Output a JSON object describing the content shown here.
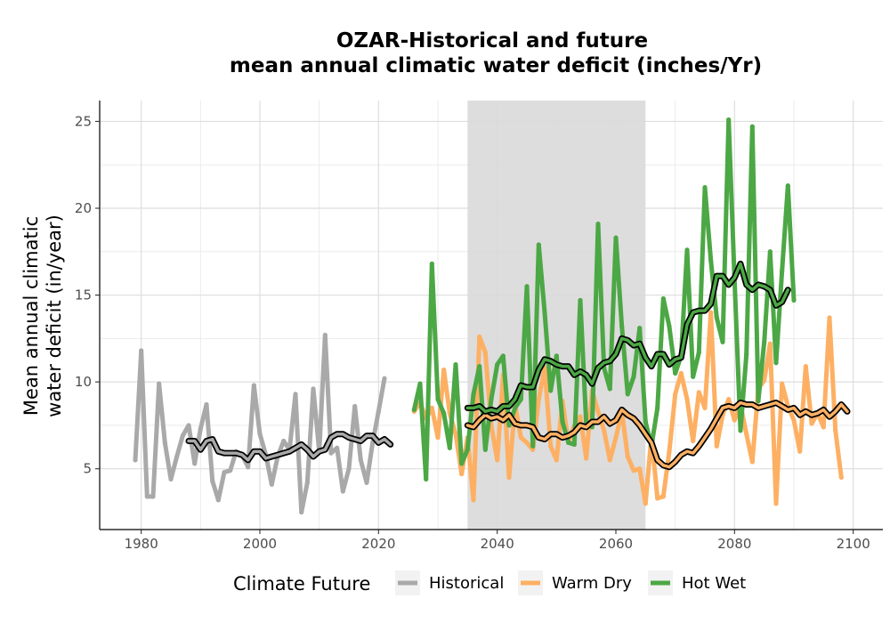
{
  "chart_data": {
    "type": "line",
    "title_line1": "OZAR-Historical and future",
    "title_line2": "mean annual climatic water deficit (inches/Yr)",
    "xlabel": "",
    "ylabel_line1": "Mean annual climatic",
    "ylabel_line2": "water deficit (in/year)",
    "xlim": [
      1973,
      2105
    ],
    "ylim": [
      1.5,
      26.2
    ],
    "x_ticks": [
      1980,
      2000,
      2020,
      2040,
      2060,
      2080,
      2100
    ],
    "y_ticks": [
      5,
      10,
      15,
      20,
      25
    ],
    "grid": true,
    "shaded_period": [
      2035,
      2065
    ],
    "legend": {
      "title": "Climate Future",
      "position": "bottom",
      "entries": [
        "Historical",
        "Warm Dry",
        "Hot Wet"
      ]
    },
    "series": [
      {
        "name": "Historical",
        "color": "#a9a9a9",
        "x": [
          1979,
          1980,
          1981,
          1982,
          1983,
          1984,
          1985,
          1986,
          1987,
          1988,
          1989,
          1990,
          1991,
          1992,
          1993,
          1994,
          1995,
          1996,
          1997,
          1998,
          1999,
          2000,
          2001,
          2002,
          2003,
          2004,
          2005,
          2006,
          2007,
          2008,
          2009,
          2010,
          2011,
          2012,
          2013,
          2014,
          2015,
          2016,
          2017,
          2018,
          2019,
          2020,
          2021,
          2022
        ],
        "values": [
          5.5,
          11.8,
          3.4,
          3.4,
          9.9,
          6.5,
          4.4,
          5.7,
          6.9,
          7.5,
          5.3,
          7.3,
          8.7,
          4.3,
          3.2,
          4.8,
          4.9,
          6.0,
          5.8,
          5.1,
          9.8,
          7.0,
          5.8,
          4.1,
          5.7,
          6.6,
          6.1,
          9.3,
          2.5,
          4.2,
          9.6,
          6.0,
          12.7,
          5.9,
          6.2,
          3.7,
          5.0,
          8.6,
          5.5,
          4.2,
          6.5,
          8.3,
          10.2,
          null
        ],
        "rolling_mean": {
          "x": [
            1988,
            1989,
            1990,
            1991,
            1992,
            1993,
            1994,
            1995,
            1996,
            1997,
            1998,
            1999,
            2000,
            2001,
            2002,
            2003,
            2004,
            2005,
            2006,
            2007,
            2008,
            2009,
            2010,
            2011,
            2012,
            2013,
            2014,
            2015,
            2016,
            2017,
            2018,
            2019,
            2020,
            2021,
            2022
          ],
          "values": [
            6.6,
            6.6,
            6.1,
            6.6,
            6.7,
            6.0,
            5.9,
            5.9,
            5.9,
            5.8,
            5.5,
            6.0,
            6.0,
            5.6,
            5.7,
            5.8,
            5.9,
            6.0,
            6.2,
            6.4,
            6.1,
            5.7,
            6.0,
            6.1,
            6.8,
            7.0,
            7.0,
            6.8,
            6.7,
            6.6,
            6.9,
            6.9,
            6.5,
            6.7,
            6.4
          ]
        }
      },
      {
        "name": "Warm Dry",
        "color": "#fdb063",
        "x": [
          2026,
          2027,
          2028,
          2029,
          2030,
          2031,
          2032,
          2033,
          2034,
          2035,
          2036,
          2037,
          2038,
          2039,
          2040,
          2041,
          2042,
          2043,
          2044,
          2045,
          2046,
          2047,
          2048,
          2049,
          2050,
          2051,
          2052,
          2053,
          2054,
          2055,
          2056,
          2057,
          2058,
          2059,
          2060,
          2061,
          2062,
          2063,
          2064,
          2065,
          2066,
          2067,
          2068,
          2069,
          2070,
          2071,
          2072,
          2073,
          2074,
          2075,
          2076,
          2077,
          2078,
          2079,
          2080,
          2081,
          2082,
          2083,
          2084,
          2085,
          2086,
          2087,
          2088,
          2089,
          2090,
          2091,
          2092,
          2093,
          2094,
          2095,
          2096,
          2097,
          2098,
          2099
        ],
        "values": [
          8.3,
          8.8,
          7.9,
          8.5,
          6.8,
          10.7,
          8.2,
          7.0,
          4.7,
          6.8,
          3.2,
          12.6,
          11.7,
          7.5,
          5.5,
          10.4,
          4.5,
          8.7,
          6.8,
          6.5,
          6.1,
          9.0,
          10.8,
          6.3,
          5.5,
          8.9,
          6.5,
          7.5,
          8.0,
          5.6,
          9.5,
          8.3,
          7.2,
          5.5,
          6.8,
          8.3,
          5.7,
          4.9,
          5.0,
          3.0,
          6.9,
          3.3,
          3.4,
          6.0,
          9.3,
          10.5,
          9.0,
          6.6,
          9.4,
          8.5,
          14.0,
          6.3,
          8.1,
          9.0,
          7.8,
          8.7,
          7.0,
          5.4,
          9.6,
          10.1,
          12.2,
          3.0,
          9.9,
          8.6,
          7.8,
          6.0,
          10.9,
          7.6,
          8.2,
          7.4,
          13.7,
          7.2,
          4.5,
          null
        ],
        "rolling_mean": {
          "x": [
            2035,
            2036,
            2037,
            2038,
            2039,
            2040,
            2041,
            2042,
            2043,
            2044,
            2045,
            2046,
            2047,
            2048,
            2049,
            2050,
            2051,
            2052,
            2053,
            2054,
            2055,
            2056,
            2057,
            2058,
            2059,
            2060,
            2061,
            2062,
            2063,
            2064,
            2065,
            2066,
            2067,
            2068,
            2069,
            2070,
            2071,
            2072,
            2073,
            2074,
            2075,
            2076,
            2077,
            2078,
            2079,
            2080,
            2081,
            2082,
            2083,
            2084,
            2085,
            2086,
            2087,
            2088,
            2089,
            2090,
            2091,
            2092,
            2093,
            2094,
            2095,
            2096,
            2097,
            2098,
            2099
          ],
          "values": [
            7.5,
            7.4,
            7.8,
            8.1,
            7.9,
            8.0,
            7.8,
            8.1,
            7.6,
            7.5,
            7.5,
            7.4,
            6.8,
            6.7,
            7.0,
            7.0,
            6.8,
            6.9,
            7.1,
            7.5,
            7.4,
            7.7,
            7.7,
            8.0,
            7.6,
            7.8,
            8.4,
            8.1,
            7.9,
            7.5,
            7.0,
            6.5,
            5.5,
            5.2,
            5.1,
            5.4,
            5.8,
            6.0,
            5.9,
            6.3,
            6.8,
            7.3,
            7.9,
            8.5,
            8.6,
            8.5,
            8.8,
            8.7,
            8.7,
            8.5,
            8.6,
            8.7,
            8.8,
            8.6,
            8.4,
            8.5,
            8.1,
            8.3,
            8.1,
            8.2,
            8.4,
            8.0,
            8.3,
            8.7,
            8.3
          ]
        }
      },
      {
        "name": "Hot Wet",
        "color": "#4ca745",
        "x": [
          2026,
          2027,
          2028,
          2029,
          2030,
          2031,
          2032,
          2033,
          2034,
          2035,
          2036,
          2037,
          2038,
          2039,
          2040,
          2041,
          2042,
          2043,
          2044,
          2045,
          2046,
          2047,
          2048,
          2049,
          2050,
          2051,
          2052,
          2053,
          2054,
          2055,
          2056,
          2057,
          2058,
          2059,
          2060,
          2061,
          2062,
          2063,
          2064,
          2065,
          2066,
          2067,
          2068,
          2069,
          2070,
          2071,
          2072,
          2073,
          2074,
          2075,
          2076,
          2077,
          2078,
          2079,
          2080,
          2081,
          2082,
          2083,
          2084,
          2085,
          2086,
          2087,
          2088,
          2089,
          2090,
          2091,
          2092,
          2093,
          2094,
          2095,
          2096,
          2097,
          2098,
          2099
        ],
        "values": [
          8.4,
          9.9,
          4.4,
          16.8,
          9.0,
          8.2,
          6.2,
          11.0,
          5.3,
          6.1,
          9.3,
          10.9,
          6.1,
          9.0,
          11.0,
          11.5,
          7.5,
          8.5,
          9.0,
          15.5,
          6.3,
          17.9,
          14.0,
          9.5,
          11.5,
          7.7,
          6.5,
          6.4,
          14.7,
          7.6,
          7.4,
          19.1,
          10.8,
          9.6,
          18.3,
          13.2,
          9.3,
          10.3,
          13.1,
          7.7,
          6.3,
          8.5,
          14.8,
          13.2,
          10.5,
          11.5,
          17.6,
          10.3,
          11.7,
          21.2,
          17.0,
          13.7,
          12.3,
          25.1,
          15.9,
          7.2,
          11.6,
          24.7,
          8.9,
          12.3,
          17.5,
          11.1,
          16.4,
          21.3,
          14.7,
          null,
          null,
          null,
          null,
          null,
          null,
          null,
          null,
          null
        ],
        "rolling_mean": {
          "x": [
            2035,
            2036,
            2037,
            2038,
            2039,
            2040,
            2041,
            2042,
            2043,
            2044,
            2045,
            2046,
            2047,
            2048,
            2049,
            2050,
            2051,
            2052,
            2053,
            2054,
            2055,
            2056,
            2057,
            2058,
            2059,
            2060,
            2061,
            2062,
            2063,
            2064,
            2065,
            2066,
            2067,
            2068,
            2069,
            2070,
            2071,
            2072,
            2073,
            2074,
            2075,
            2076,
            2077,
            2078,
            2079,
            2080,
            2081,
            2082,
            2083,
            2084,
            2085,
            2086,
            2087,
            2088,
            2089,
            2090,
            2091,
            2092,
            2093,
            2094,
            2095,
            2096,
            2097,
            2098,
            2099
          ],
          "values": [
            8.5,
            8.5,
            8.6,
            8.3,
            8.4,
            8.3,
            8.6,
            8.6,
            9.0,
            9.8,
            9.7,
            9.7,
            10.7,
            11.3,
            11.2,
            11.0,
            10.9,
            10.9,
            10.4,
            10.6,
            10.4,
            9.9,
            10.8,
            11.1,
            11.2,
            11.6,
            12.5,
            12.4,
            12.1,
            12.2,
            11.4,
            10.9,
            11.6,
            11.6,
            11.0,
            11.3,
            11.4,
            13.3,
            14.0,
            14.1,
            14.1,
            14.5,
            16.1,
            16.1,
            15.6,
            16.0,
            16.8,
            15.6,
            15.3,
            15.6,
            15.5,
            15.3,
            14.4,
            14.6,
            15.3,
            null,
            null,
            null,
            null,
            null,
            null,
            null,
            null,
            null,
            null
          ]
        }
      }
    ]
  }
}
